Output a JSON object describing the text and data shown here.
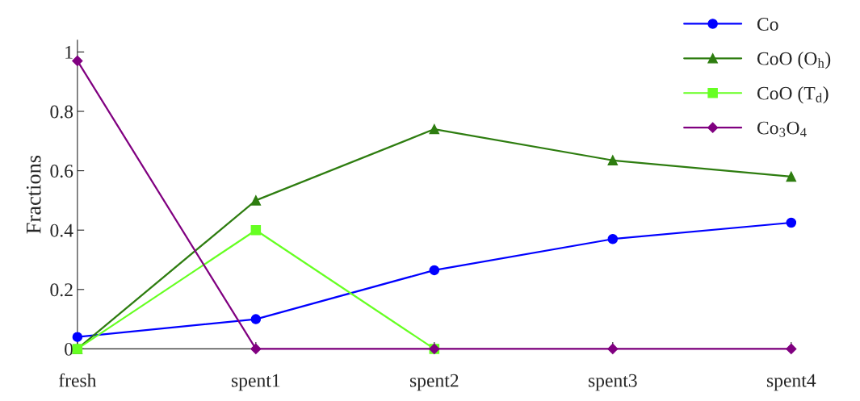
{
  "chart_data": {
    "type": "line",
    "ylabel": "Fractions",
    "categories": [
      "fresh",
      "spent1",
      "spent2",
      "spent3",
      "spent4"
    ],
    "series": [
      {
        "name": "Co",
        "color": "#0000ff",
        "marker": "circle",
        "values": [
          0.04,
          0.1,
          0.265,
          0.37,
          0.425
        ]
      },
      {
        "name": "CoO (O$_{h}$)",
        "color": "#2e7d10",
        "marker": "triangle",
        "values": [
          0,
          0.5,
          0.74,
          0.635,
          0.58
        ]
      },
      {
        "name": "CoO (T$_{d}$)",
        "color": "#66ff22",
        "marker": "square",
        "values": [
          0,
          0.4,
          0,
          null,
          null
        ]
      },
      {
        "name": "Co$_{3}$O$_{4}$",
        "color": "#800080",
        "marker": "diamond",
        "values": [
          0.97,
          0,
          0,
          0,
          0
        ]
      }
    ],
    "ylim": [
      0,
      1.04
    ],
    "yticks": [
      0,
      0.2,
      0.4,
      0.6,
      0.8,
      1
    ],
    "grid": false,
    "legend": "top right",
    "line_style": "solid"
  }
}
